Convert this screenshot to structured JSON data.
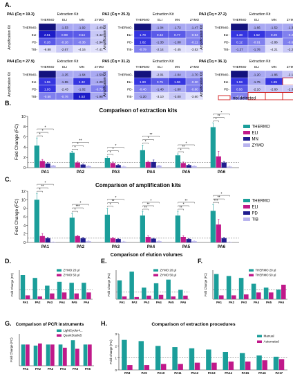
{
  "panel_letters": [
    "A.",
    "B.",
    "C.",
    "D.",
    "E.",
    "F.",
    "G.",
    "H."
  ],
  "heatmaps": {
    "col_header": "Extraction Kit",
    "row_axis": "Amplification Kit",
    "columns": [
      "THERMO",
      "ELI",
      "MN",
      "ZYMO"
    ],
    "rows": [
      "THERMO",
      "ELI",
      "PD",
      "TIB"
    ],
    "legend_label": "not detected",
    "panels": [
      {
        "title": "PA1 (C̄q = 19.3)",
        "values": [
          [
            "",
            "-1.53",
            "-1.92",
            "-2.40"
          ],
          [
            "2.51",
            "0.99",
            "0.54",
            "-2.42"
          ],
          [
            "0.28",
            "-0.18",
            "-0.36",
            "-2.94"
          ],
          [
            "-6.88",
            "-2.67",
            "-4.16",
            "-7.41"
          ]
        ]
      },
      {
        "title": "PA2 (C̄q = 25.3)",
        "values": [
          [
            "",
            "-1.04",
            "-1.72",
            "-1.47"
          ],
          [
            "1.79",
            "0.34",
            "0.77",
            "-0.94"
          ],
          [
            "1.62",
            "-1.33",
            "-1.08",
            "-0.11"
          ],
          [
            "-0.79",
            "-2.14",
            "-3.45",
            "-3.52"
          ]
        ]
      },
      {
        "title": "PA3 (C̄q = 27.2)",
        "values": [
          [
            "",
            "-1.66",
            "-1.52",
            "-1.31"
          ],
          [
            "1.38",
            "1.52",
            "0.29",
            "-0.22"
          ],
          [
            "0.12",
            "-0.91",
            "-2.86",
            "-0.63"
          ],
          [
            "-1.27",
            "-1.76",
            "-4.21",
            "-2.26"
          ]
        ]
      },
      {
        "title": "PA4 (C̄q = 27.9)",
        "values": [
          [
            "",
            "-1.25",
            "-1.64",
            "-1.50"
          ],
          [
            "1.55",
            "-1.55",
            "1.32",
            "-1.29"
          ],
          [
            "1.93",
            "-2.43",
            "-1.02",
            "-0.79"
          ],
          [
            "-0.50",
            "-0.76",
            "4.53",
            "-1.98"
          ]
        ]
      },
      {
        "title": "PA5 (C̄q = 31.2)",
        "values": [
          [
            "",
            "-2.01",
            "-1.04",
            "-1.70"
          ],
          [
            "1.90",
            "0.75",
            "1.06",
            "-0.30"
          ],
          [
            "-0.40",
            "-1.40",
            "-1.60",
            "-0.60"
          ],
          [
            "-1.20",
            "-3.10",
            "-3.00",
            "-3.60"
          ]
        ]
      },
      {
        "title": "PA6 (C̄q = 36.1)",
        "values": [
          [
            "",
            "-1.20",
            "-1.86",
            "-2.10"
          ],
          [
            "1.59",
            "-1.75",
            "1.89",
            "X"
          ],
          [
            "0.56",
            "-2.10",
            "-2.60",
            "-2.30"
          ],
          [
            "-0.58",
            "X",
            "X",
            "X"
          ]
        ]
      }
    ]
  },
  "chart_data": [
    {
      "type": "bar",
      "title": "Comparison of extraction kits",
      "ylabel": "Fold Change (FC)",
      "ylim": [
        0,
        10
      ],
      "yticks": [
        0,
        2,
        4,
        6,
        8,
        10
      ],
      "categories": [
        "PA1",
        "PA2",
        "PA3",
        "PA4",
        "PA5",
        "PA6"
      ],
      "series": [
        {
          "name": "THERMO",
          "color": "#1b9e9a",
          "values": [
            4.3,
            2.9,
            1.9,
            3.4,
            2.4,
            7.9
          ],
          "err": [
            1.5,
            0.3,
            0.3,
            1.0,
            0.3,
            0.8
          ]
        },
        {
          "name": "ELI",
          "color": "#c0198a",
          "values": [
            1.3,
            1.0,
            0.9,
            1.1,
            0.9,
            2.2
          ],
          "err": [
            0.3,
            0.2,
            0.2,
            0.2,
            0.2,
            1.0
          ]
        },
        {
          "name": "MN",
          "color": "#1f1c8f",
          "values": [
            0.8,
            0.6,
            0.5,
            1.1,
            0.5,
            1.0
          ],
          "err": [
            0.2,
            0.1,
            0.1,
            0.4,
            0.1,
            0.2
          ]
        },
        {
          "name": "ZYMO",
          "color": "#b9b4ee",
          "values": [
            0.4,
            0.3,
            0.2,
            0.4,
            0.3,
            0.2
          ],
          "err": [
            0.1,
            0.1,
            0.1,
            0.1,
            0.1,
            0.1
          ]
        }
      ],
      "significance": [
        "*",
        "*",
        "*",
        "*",
        "*",
        "**",
        "*",
        "*",
        "*",
        "*",
        "*",
        "**",
        "*",
        "**",
        "*",
        "*",
        "**",
        "*"
      ]
    },
    {
      "type": "bar",
      "title": "Comparison of amplification kits",
      "ylabel": "Fold Change (FC)",
      "ylim": [
        0,
        12
      ],
      "yticks": [
        0,
        2,
        4,
        6,
        8,
        10,
        12
      ],
      "categories": [
        "PA1",
        "PA2",
        "PA3",
        "PA4",
        "PA5",
        "PA6"
      ],
      "series": [
        {
          "name": "THERMO",
          "color": "#1b9e9a",
          "values": [
            10.0,
            5.8,
            6.5,
            6.3,
            6.3,
            7.4
          ],
          "err": [
            1.5,
            1.0,
            1.5,
            1.0,
            1.0,
            1.5
          ]
        },
        {
          "name": "ELI",
          "color": "#c0198a",
          "values": [
            1.5,
            1.5,
            1.0,
            1.3,
            1.3,
            4.2
          ],
          "err": [
            0.6,
            0.2,
            0.2,
            0.3,
            0.3,
            1.2
          ]
        },
        {
          "name": "PD",
          "color": "#1f1c8f",
          "values": [
            1.0,
            1.0,
            0.8,
            0.9,
            0.8,
            1.0
          ],
          "err": [
            0.2,
            0.2,
            0.1,
            0.1,
            0.1,
            0.2
          ]
        },
        {
          "name": "TIB",
          "color": "#b9b4ee",
          "values": [
            0.1,
            0.3,
            0.2,
            0.3,
            0.3,
            0.1
          ],
          "err": [
            0.05,
            0.1,
            0.1,
            0.1,
            0.1,
            0.05
          ]
        }
      ],
      "significance": [
        "*",
        "**",
        "*",
        "*",
        "***",
        "*",
        "*",
        "**",
        "*",
        "**",
        "**",
        "*",
        "**",
        "*",
        "**",
        "***",
        "**",
        "*"
      ]
    },
    {
      "type": "bar",
      "title": "Comparison of elution volumes",
      "ylabel": "Fold Change (FC)",
      "ylim": [
        0,
        3
      ],
      "categories": [
        "PA1",
        "PA2",
        "PA3",
        "PA4",
        "PA5",
        "PA6"
      ],
      "series": [
        {
          "name": "ZYMO 20 µl",
          "color": "#1b9e9a",
          "values": [
            2.5,
            2.2,
            1.4,
            1.8,
            1.7,
            1.7
          ]
        },
        {
          "name": "ZYMO 50 µl",
          "color": "#c0198a",
          "values": [
            0.4,
            0.3,
            0.6,
            0.7,
            0.6,
            0.7
          ]
        }
      ]
    },
    {
      "type": "bar",
      "ylabel": "Fold Change (FC)",
      "ylim": [
        0,
        4
      ],
      "categories": [
        "PA1",
        "PA2",
        "PA3",
        "PA4",
        "PA5",
        "PA6"
      ],
      "series": [
        {
          "name": "ZYMO 20 µl",
          "color": "#1b9e9a",
          "values": [
            2.6,
            3.8,
            1.6,
            2.2,
            2.7,
            1.3
          ]
        },
        {
          "name": "ZYMO 50 µl",
          "color": "#c0198a",
          "values": [
            0.4,
            0.3,
            0.5,
            0.6,
            0.4,
            0.5
          ]
        }
      ]
    },
    {
      "type": "bar",
      "ylabel": "Fold Change (FC)",
      "ylim": [
        0,
        3
      ],
      "categories": [
        "PA1",
        "PA2",
        "PA3",
        "PA4",
        "PA5",
        "PA6"
      ],
      "series": [
        {
          "name": "THERMO 20 µl",
          "color": "#1b9e9a",
          "values": [
            2.6,
            2.4,
            2.2,
            1.6,
            1.2,
            1.0
          ]
        },
        {
          "name": "THERMO 50 µl",
          "color": "#c0198a",
          "values": [
            0.4,
            0.4,
            0.5,
            0.7,
            0.7,
            1.5
          ]
        }
      ]
    },
    {
      "type": "bar",
      "title": "Comparison of PCR instruments",
      "ylabel": "Fold Change (FC)",
      "ylim": [
        0,
        1.5
      ],
      "categories": [
        "PA1",
        "PA2",
        "PA3",
        "PA4",
        "PA5",
        "PA6"
      ],
      "series": [
        {
          "name": "LightCycler4...",
          "color": "#1b9e9a",
          "values": [
            1.0,
            0.95,
            1.0,
            1.0,
            1.2,
            1.0
          ]
        },
        {
          "name": "QuantStudio5",
          "color": "#c0198a",
          "values": [
            1.0,
            1.05,
            1.0,
            0.85,
            0.8,
            1.0
          ]
        }
      ]
    },
    {
      "type": "bar",
      "title": "Comparison of extraction procedures",
      "ylabel": "Fold Change (FC)",
      "ylim": [
        0,
        3
      ],
      "yticks": [
        0,
        1,
        2,
        3
      ],
      "categories": [
        "PA8",
        "PA9",
        "PA10",
        "PA11",
        "PA12",
        "PA13",
        "PA14",
        "PA15",
        "PA16",
        "PA17"
      ],
      "series": [
        {
          "name": "Manual",
          "color": "#1b9e9a",
          "values": [
            2.5,
            2.4,
            2.0,
            1.9,
            1.8,
            1.7,
            1.5,
            1.4,
            1.2,
            1.1
          ]
        },
        {
          "name": "Automated",
          "color": "#c0198a",
          "values": [
            0.4,
            0.4,
            0.5,
            0.5,
            0.6,
            0.6,
            0.7,
            0.7,
            0.8,
            0.9
          ]
        }
      ]
    }
  ]
}
